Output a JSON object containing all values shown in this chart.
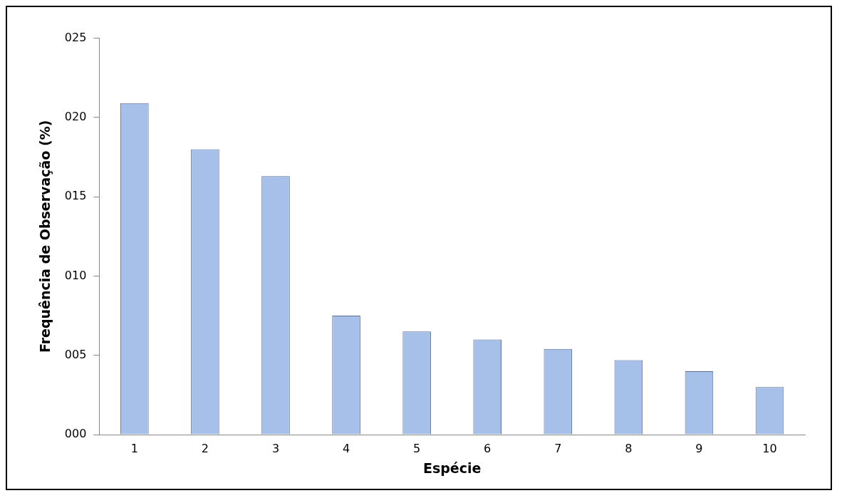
{
  "chart_data": {
    "type": "bar",
    "xlabel": "Espécie",
    "ylabel": "Frequência de Observação (%)",
    "categories": [
      "1",
      "2",
      "3",
      "4",
      "5",
      "6",
      "7",
      "8",
      "9",
      "10"
    ],
    "values": [
      20.9,
      18.0,
      16.3,
      7.5,
      6.5,
      6.0,
      5.4,
      4.7,
      4.0,
      3.0
    ],
    "color": "#a6c0ea",
    "ylim": [
      0,
      25
    ],
    "yticks": [
      {
        "value": 0,
        "label": "000"
      },
      {
        "value": 5,
        "label": "005"
      },
      {
        "value": 10,
        "label": "010"
      },
      {
        "value": 15,
        "label": "015"
      },
      {
        "value": 20,
        "label": "020"
      },
      {
        "value": 25,
        "label": "025"
      }
    ],
    "grid": false,
    "legend": false
  }
}
